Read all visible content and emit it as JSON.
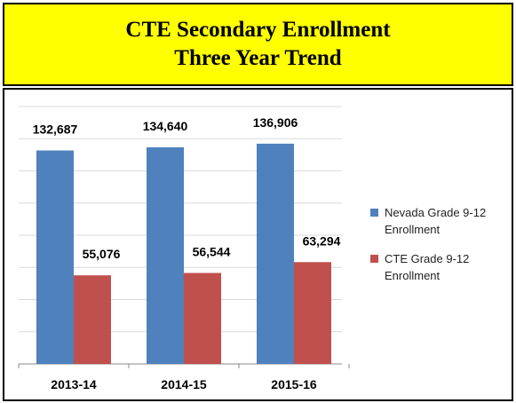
{
  "chart_data": {
    "type": "bar",
    "title": "CTE Secondary Enrollment",
    "subtitle": "Three Year Trend",
    "categories": [
      "2013-14",
      "2014-15",
      "2015-16"
    ],
    "series": [
      {
        "name": "Nevada Grade 9-12 Enrollment",
        "color": "#4f81bd",
        "values": [
          132687,
          134640,
          136906
        ],
        "value_labels": [
          "132,687",
          "134,640",
          "136,906"
        ]
      },
      {
        "name": "CTE Grade 9-12 Enrollment",
        "color": "#c0504d",
        "values": [
          55076,
          56544,
          63294
        ],
        "value_labels": [
          "55,076",
          "56,544",
          "63,294"
        ]
      }
    ],
    "ylim": [
      0,
      160000
    ],
    "yticks": [
      0,
      20000,
      40000,
      60000,
      80000,
      100000,
      120000,
      140000,
      160000
    ],
    "grid": true,
    "legend": "right"
  }
}
